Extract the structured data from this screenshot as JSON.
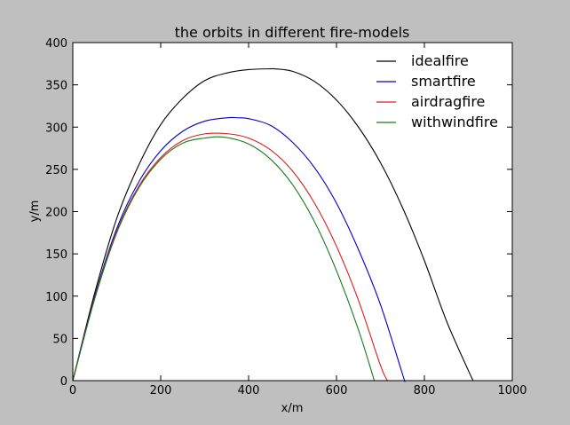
{
  "chart_data": {
    "type": "line",
    "title": "the orbits in different fire-models",
    "xlabel": "x/m",
    "ylabel": "y/m",
    "xlim": [
      0,
      1000
    ],
    "ylim": [
      0,
      400
    ],
    "x_ticks": [
      0,
      200,
      400,
      600,
      800,
      1000
    ],
    "y_ticks": [
      0,
      50,
      100,
      150,
      200,
      250,
      300,
      350,
      400
    ],
    "grid": false,
    "legend_position": "top-right",
    "series": [
      {
        "name": "idealfire",
        "color": "#000000",
        "x": [
          0,
          50,
          100,
          150,
          200,
          250,
          300,
          350,
          400,
          450,
          458,
          500,
          550,
          600,
          650,
          700,
          750,
          800,
          850,
          900,
          911
        ],
        "y": [
          0,
          104,
          192,
          255,
          303,
          334,
          355,
          364,
          368,
          369,
          369,
          366,
          354,
          332,
          300,
          258,
          205,
          142,
          71,
          12,
          0
        ]
      },
      {
        "name": "smartfire",
        "color": "#0000bf",
        "x": [
          0,
          50,
          100,
          150,
          200,
          250,
          300,
          350,
          377,
          400,
          450,
          500,
          550,
          600,
          650,
          700,
          750,
          755
        ],
        "y": [
          0,
          100,
          180,
          235,
          272,
          295,
          307,
          311,
          311,
          310,
          302,
          282,
          252,
          210,
          155,
          90,
          8,
          0
        ]
      },
      {
        "name": "airdragfire",
        "color": "#d62020",
        "x": [
          0,
          50,
          100,
          150,
          200,
          250,
          300,
          355,
          400,
          450,
          500,
          550,
          600,
          650,
          700,
          716
        ],
        "y": [
          0,
          98,
          177,
          230,
          264,
          284,
          292,
          292,
          287,
          273,
          248,
          210,
          159,
          95,
          18,
          0
        ]
      },
      {
        "name": "withwindfire",
        "color": "#1a7a1a",
        "x": [
          0,
          50,
          100,
          150,
          200,
          250,
          300,
          345,
          400,
          450,
          500,
          550,
          600,
          650,
          686
        ],
        "y": [
          0,
          97,
          175,
          228,
          262,
          281,
          287,
          288,
          280,
          262,
          232,
          188,
          130,
          60,
          0
        ]
      }
    ]
  }
}
